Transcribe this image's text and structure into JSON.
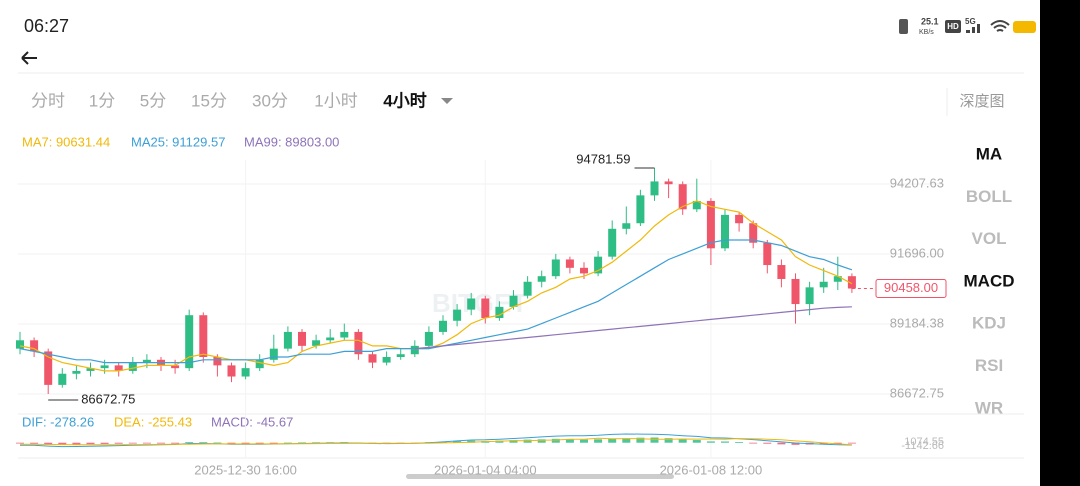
{
  "status_bar": {
    "time": "06:27",
    "speed": "25.1",
    "speed_unit": "KB/s",
    "hd": "HD",
    "network": "5G"
  },
  "tabs": [
    "分时",
    "1分",
    "5分",
    "15分",
    "30分",
    "1小时",
    "4小时"
  ],
  "active_tab": 6,
  "depth": "深度图",
  "indicators": [
    "MA",
    "BOLL",
    "VOL",
    "MACD",
    "KDJ",
    "RSI",
    "WR"
  ],
  "active_indicators": [
    0,
    3
  ],
  "watermark": "BITGET",
  "chart_data": {
    "type": "candlestick",
    "ma_legend": [
      "MA7: 90631.44",
      "MA25: 91129.57",
      "MA99: 89803.00"
    ],
    "macd_legend": [
      "DIF: -278.26",
      "DEA: -255.43",
      "MACD: -45.67"
    ],
    "max_label": "94781.59",
    "min_label": "86672.75",
    "last_price": "90458.00",
    "up_color": "#2ebd85",
    "down_color": "#f0566a",
    "ylim": [
      86098.7,
      95068.7
    ],
    "yticks": [
      {
        "value": 94207.63,
        "label": "94207.63"
      },
      {
        "value": 91696,
        "label": "91696.00"
      },
      {
        "value": 89184.38,
        "label": "89184.38"
      },
      {
        "value": 86672.75,
        "label": "86672.75"
      }
    ],
    "xticks": [
      {
        "value": 16,
        "label": "2025-12-30 16:00"
      },
      {
        "value": 33,
        "label": "2026-01-04 04:00"
      },
      {
        "value": 49,
        "label": "2026-01-08 12:00"
      }
    ],
    "open": [
      88300,
      88600,
      88200,
      87000,
      87400,
      87500,
      87600,
      87700,
      87500,
      87800,
      87900,
      87700,
      87600,
      89500,
      88000,
      87700,
      87300,
      87600,
      87900,
      88300,
      88900,
      88400,
      88600,
      88700,
      88900,
      88100,
      87800,
      88000,
      88100,
      88400,
      88900,
      89300,
      89700,
      90100,
      89400,
      89800,
      90200,
      90700,
      90900,
      91500,
      91200,
      91000,
      91600,
      92600,
      92800,
      93800,
      94300,
      94200,
      93300,
      93600,
      91900,
      93100,
      92800,
      92100,
      91300,
      90800,
      89900,
      90500,
      90700,
      90900
    ],
    "high": [
      88900,
      88700,
      88300,
      87600,
      87700,
      87800,
      87900,
      87800,
      88000,
      88100,
      88000,
      87900,
      89700,
      89600,
      88100,
      87800,
      87800,
      88100,
      88800,
      89100,
      89000,
      88800,
      89000,
      89200,
      89000,
      88200,
      88200,
      88300,
      88600,
      89100,
      89500,
      89900,
      90300,
      90200,
      90000,
      90400,
      90900,
      91100,
      91700,
      91600,
      91400,
      91800,
      92900,
      93400,
      94000,
      94781.59,
      94400,
      94300,
      94400,
      93700,
      93300,
      93200,
      92900,
      92200,
      91500,
      91000,
      90700,
      91200,
      91600,
      91000
    ],
    "low": [
      88100,
      88000,
      86672.75,
      86900,
      87200,
      87300,
      87400,
      87300,
      87400,
      87600,
      87500,
      87400,
      87500,
      87800,
      87300,
      87100,
      87200,
      87500,
      87800,
      88200,
      88200,
      88300,
      88500,
      88600,
      87900,
      87600,
      87700,
      87900,
      88000,
      88300,
      88800,
      89100,
      89500,
      89200,
      89300,
      89700,
      90100,
      90500,
      90800,
      91000,
      90800,
      90900,
      91500,
      92400,
      92700,
      93600,
      93700,
      93100,
      93200,
      91300,
      91800,
      92500,
      91900,
      91000,
      90500,
      89200,
      89500,
      90300,
      90400,
      90300
    ],
    "close": [
      88600,
      88200,
      87000,
      87400,
      87500,
      87600,
      87700,
      87500,
      87800,
      87900,
      87700,
      87600,
      89500,
      88000,
      87700,
      87300,
      87600,
      87900,
      88300,
      88900,
      88400,
      88600,
      88700,
      88900,
      88100,
      87800,
      88000,
      88100,
      88400,
      88900,
      89300,
      89700,
      90100,
      89400,
      89800,
      90200,
      90700,
      90900,
      91500,
      91200,
      91000,
      91600,
      92600,
      92800,
      93800,
      94300,
      94200,
      93300,
      93600,
      91900,
      93100,
      92800,
      92100,
      91300,
      90800,
      89900,
      90500,
      90700,
      90900,
      90458
    ],
    "series": [
      {
        "name": "MA7",
        "color": "#f0b90b",
        "values": [
          88400,
          88300,
          88000,
          87800,
          87700,
          87600,
          87500,
          87500,
          87600,
          87700,
          87700,
          87700,
          88000,
          88100,
          88000,
          87900,
          87900,
          87800,
          87700,
          87800,
          88200,
          88400,
          88500,
          88600,
          88600,
          88400,
          88400,
          88300,
          88300,
          88300,
          88500,
          88800,
          89200,
          89400,
          89500,
          89800,
          90000,
          90300,
          90500,
          90800,
          90900,
          91100,
          91400,
          91800,
          92200,
          92700,
          93100,
          93400,
          93600,
          93400,
          93300,
          93200,
          92800,
          92500,
          92200,
          91600,
          91300,
          91100,
          90900,
          90631.44
        ]
      },
      {
        "name": "MA25",
        "color": "#3d9fd6",
        "values": [
          88300,
          88200,
          88100,
          88000,
          87900,
          87900,
          87800,
          87800,
          87800,
          87800,
          87800,
          87800,
          87800,
          87900,
          87900,
          87900,
          87900,
          87900,
          88000,
          88000,
          88100,
          88100,
          88100,
          88200,
          88200,
          88200,
          88300,
          88300,
          88300,
          88300,
          88400,
          88500,
          88600,
          88700,
          88800,
          88900,
          89000,
          89200,
          89400,
          89600,
          89800,
          90000,
          90300,
          90600,
          90900,
          91200,
          91500,
          91700,
          91900,
          92100,
          92200,
          92200,
          92200,
          92100,
          92000,
          91800,
          91600,
          91500,
          91300,
          91129.57
        ]
      },
      {
        "name": "MA99",
        "color": "#8e73b8",
        "values": [
          null,
          null,
          null,
          null,
          null,
          null,
          null,
          null,
          null,
          null,
          null,
          null,
          null,
          null,
          null,
          null,
          null,
          null,
          null,
          null,
          null,
          null,
          null,
          null,
          null,
          null,
          null,
          null,
          88300,
          88350,
          88400,
          88450,
          88500,
          88550,
          88600,
          88650,
          88700,
          88750,
          88800,
          88850,
          88900,
          88950,
          89000,
          89050,
          89100,
          89150,
          89200,
          89250,
          89300,
          89350,
          89400,
          89450,
          89500,
          89550,
          89600,
          89650,
          89700,
          89750,
          89780,
          89803.0
        ]
      }
    ],
    "macd_ylim": [
      -1142.66,
      1074.55
    ],
    "macd_yticks": [
      {
        "value": 1074.55,
        "label": "1074.55"
      },
      {
        "value": -1142.66,
        "label": "-1142.66"
      }
    ],
    "macd": [
      -100,
      -120,
      -200,
      -250,
      -220,
      -180,
      -150,
      -120,
      -90,
      -60,
      -40,
      -20,
      80,
      60,
      20,
      -30,
      -50,
      -40,
      -20,
      10,
      30,
      40,
      50,
      60,
      20,
      -20,
      -40,
      -30,
      -10,
      60,
      120,
      200,
      260,
      220,
      260,
      320,
      380,
      420,
      480,
      430,
      380,
      420,
      520,
      560,
      620,
      640,
      560,
      400,
      330,
      160,
      150,
      80,
      -20,
      -120,
      -200,
      -260,
      -220,
      -160,
      -100,
      -45.67
    ],
    "dif": [
      -300,
      -320,
      -420,
      -480,
      -470,
      -440,
      -400,
      -360,
      -320,
      -280,
      -250,
      -220,
      -100,
      -100,
      -130,
      -180,
      -200,
      -190,
      -160,
      -120,
      -90,
      -70,
      -50,
      -30,
      -50,
      -90,
      -110,
      -100,
      -80,
      0,
      100,
      220,
      330,
      360,
      430,
      520,
      620,
      720,
      820,
      860,
      870,
      920,
      1020,
      1074.55,
      1060,
      1040,
      980,
      860,
      780,
      620,
      580,
      500,
      380,
      240,
      100,
      -40,
      -110,
      -180,
      -240,
      -278.26
    ],
    "dea": [
      -200,
      -200,
      -220,
      -230,
      -250,
      -260,
      -250,
      -240,
      -230,
      -220,
      -210,
      -200,
      -180,
      -160,
      -150,
      -150,
      -150,
      -150,
      -140,
      -130,
      -120,
      -110,
      -100,
      -90,
      -70,
      -70,
      -70,
      -70,
      -70,
      -60,
      -20,
      20,
      70,
      140,
      170,
      260,
      240,
      300,
      340,
      430,
      440,
      540,
      500,
      514,
      500,
      420,
      420,
      460,
      450,
      460,
      430,
      520,
      500,
      440,
      360,
      220,
      110,
      -20,
      -140,
      -255.43
    ]
  }
}
